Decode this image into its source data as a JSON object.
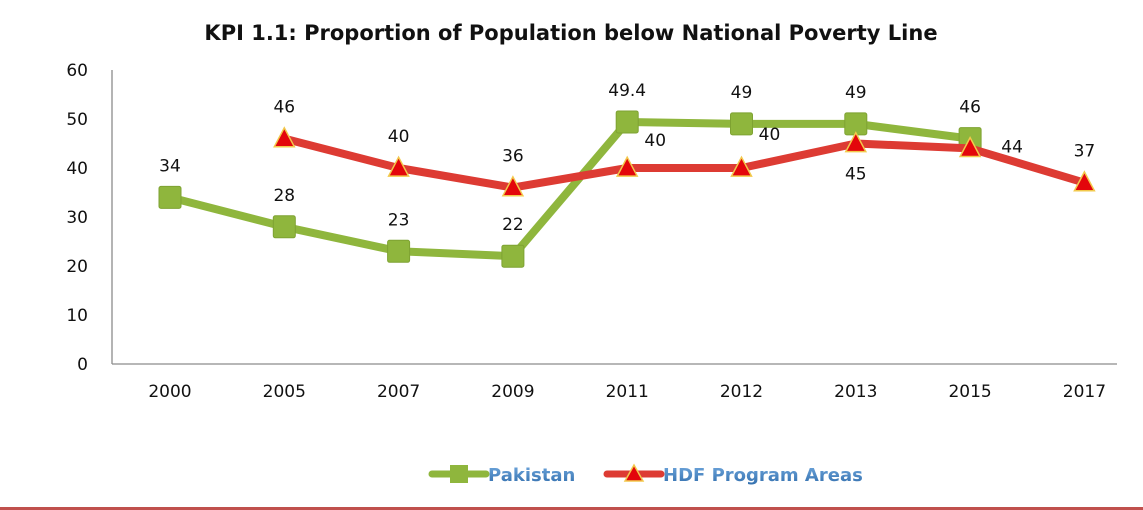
{
  "chart_data": {
    "type": "line",
    "title": "KPI 1.1: Proportion of Population below National Poverty Line",
    "categories": [
      "2000",
      "2005",
      "2007",
      "2009",
      "2011",
      "2012",
      "2013",
      "2015",
      "2017"
    ],
    "ylim": [
      0,
      60
    ],
    "yticks": [
      "0",
      "10",
      "20",
      "30",
      "40",
      "50",
      "60"
    ],
    "grid": false,
    "legend_position": "bottom",
    "series": [
      {
        "name": "Pakistan",
        "color": "#8fb63d",
        "marker": "square",
        "values": [
          34,
          28,
          23,
          22,
          49.4,
          49,
          49,
          46,
          null
        ],
        "labels": [
          "34",
          "28",
          "23",
          "22",
          "49.4",
          "49",
          "49",
          "46",
          null
        ]
      },
      {
        "name": "HDF Program Areas",
        "color": "#dd3b33",
        "marker": "triangle",
        "values": [
          null,
          46,
          40,
          36,
          40,
          40,
          45,
          44,
          37
        ],
        "labels": [
          null,
          "46",
          "40",
          "36",
          "40",
          "40",
          "45",
          "44",
          "37"
        ]
      }
    ]
  }
}
